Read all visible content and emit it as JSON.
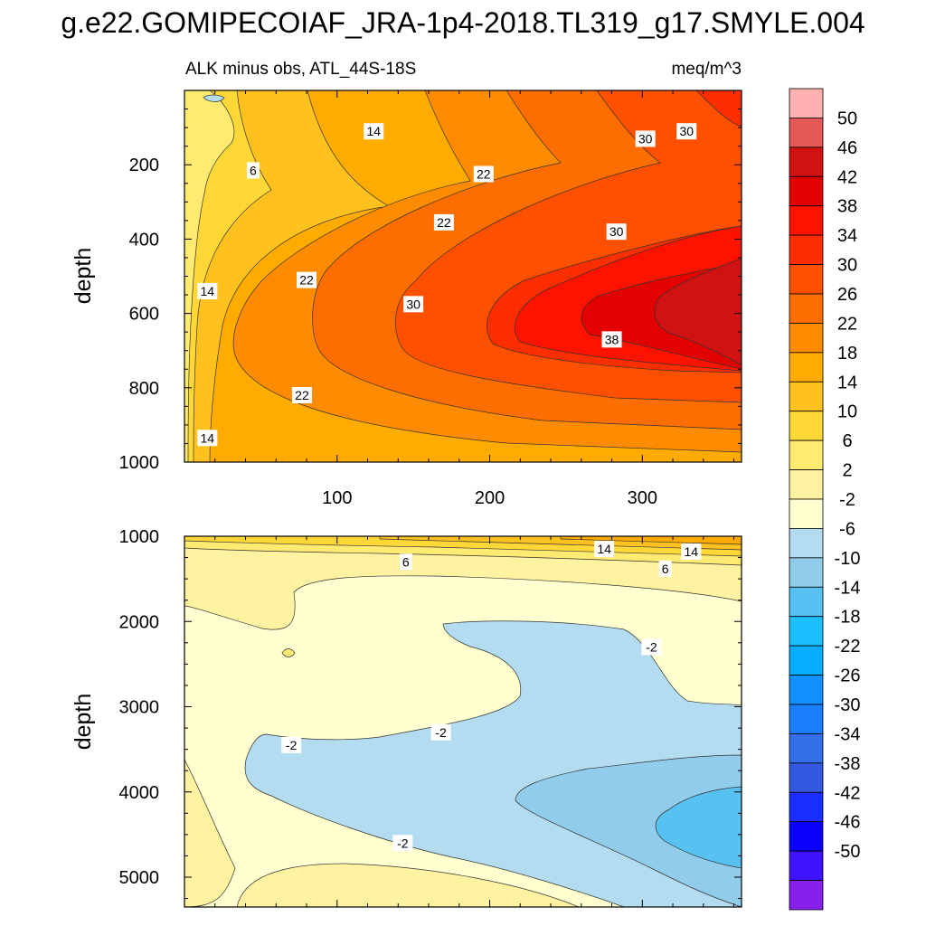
{
  "figure": {
    "title": "g.e22.GOMIPECOIAF_JRA-1p4-2018.TL319_g17.SMYLE.004",
    "subtitle_left": "ALK minus obs, ATL_44S-18S",
    "subtitle_right": "meq/m^3"
  },
  "chart_data": [
    {
      "type": "heatmap",
      "panel": "upper",
      "variable": "ALK minus obs",
      "region": "ATL_44S-18S",
      "units": "meq/m^3",
      "xlabel": "",
      "ylabel": "depth",
      "xlim": [
        0,
        365
      ],
      "ylim": [
        1000,
        0
      ],
      "xticks": [
        100,
        200,
        300
      ],
      "yticks": [
        200,
        400,
        600,
        800,
        1000
      ],
      "contour_labels": [
        {
          "text": "6",
          "x": 45,
          "depth": 215
        },
        {
          "text": "14",
          "x": 124,
          "depth": 110
        },
        {
          "text": "14",
          "x": 15,
          "depth": 540
        },
        {
          "text": "14",
          "x": 15,
          "depth": 935
        },
        {
          "text": "22",
          "x": 80,
          "depth": 510
        },
        {
          "text": "22",
          "x": 77,
          "depth": 820
        },
        {
          "text": "22",
          "x": 170,
          "depth": 355
        },
        {
          "text": "22",
          "x": 196,
          "depth": 225
        },
        {
          "text": "30",
          "x": 150,
          "depth": 575
        },
        {
          "text": "30",
          "x": 283,
          "depth": 380
        },
        {
          "text": "30",
          "x": 302,
          "depth": 130
        },
        {
          "text": "30",
          "x": 329,
          "depth": 110
        },
        {
          "text": "38",
          "x": 280,
          "depth": 670
        }
      ]
    },
    {
      "type": "heatmap",
      "panel": "lower",
      "variable": "ALK minus obs",
      "region": "ATL_44S-18S",
      "units": "meq/m^3",
      "xlabel": "",
      "ylabel": "depth",
      "xlim": [
        0,
        365
      ],
      "ylim": [
        5350,
        1000
      ],
      "yticks": [
        1000,
        2000,
        3000,
        4000,
        5000
      ],
      "contour_labels": [
        {
          "text": "14",
          "x": 275,
          "depth": 1150
        },
        {
          "text": "14",
          "x": 332,
          "depth": 1180
        },
        {
          "text": "6",
          "x": 145,
          "depth": 1300
        },
        {
          "text": "6",
          "x": 315,
          "depth": 1380
        },
        {
          "text": "-2",
          "x": 306,
          "depth": 2300
        },
        {
          "text": "-2",
          "x": 168,
          "depth": 3300
        },
        {
          "text": "-2",
          "x": 70,
          "depth": 3450
        },
        {
          "text": "-2",
          "x": 143,
          "depth": 4600
        }
      ]
    }
  ],
  "colorbar": {
    "labels": [
      "50",
      "46",
      "42",
      "38",
      "34",
      "30",
      "26",
      "22",
      "18",
      "14",
      "10",
      "6",
      "2",
      "-2",
      "-6",
      "-10",
      "-14",
      "-18",
      "-22",
      "-26",
      "-30",
      "-34",
      "-38",
      "-42",
      "-46",
      "-50"
    ],
    "colors": [
      "#ffb1b1",
      "#e45858",
      "#d01212",
      "#e30000",
      "#ff1200",
      "#ff2e00",
      "#ff5000",
      "#fe6d00",
      "#ff8c00",
      "#ffab00",
      "#ffc11e",
      "#ffd838",
      "#ffea72",
      "#fff2a0",
      "#ffffcf",
      "#b3dcf0",
      "#91cceb",
      "#57c1f2",
      "#1dc0ff",
      "#05aeff",
      "#1191ff",
      "#1b7eff",
      "#3370e8",
      "#3359e0",
      "#1a2fff",
      "#0b00ff",
      "#4013ff",
      "#8820ec"
    ]
  }
}
